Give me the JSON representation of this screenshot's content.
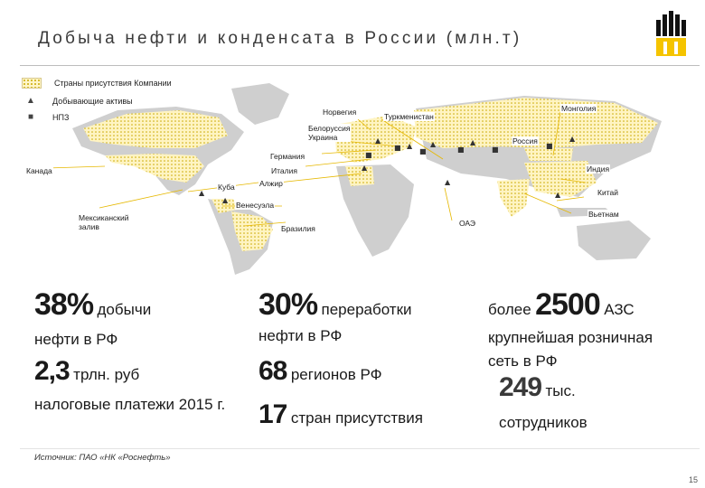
{
  "slide": {
    "title": "Добыча нефти и конденсата в России (млн.т)",
    "source": "Источник: ПАО «НК «Роснефть»",
    "page_number": "15"
  },
  "colors": {
    "accent_yellow": "#f5c400",
    "logo_black": "#111111",
    "land": "#c9c9c9",
    "presence_fill": "#fff5c8"
  },
  "legend": [
    {
      "icon": "dotted-swatch",
      "label": "Страны присутствия Компании"
    },
    {
      "icon": "derrick-icon",
      "label": "Добывающие активы"
    },
    {
      "icon": "refinery-icon",
      "label": "НПЗ"
    }
  ],
  "map_labels": {
    "norway": "Норвегия",
    "turkmenistan": "Туркменистан",
    "mongolia": "Монголия",
    "belarus_ukraine": "Белоруссия\nУкраина",
    "russia": "Россия",
    "germany": "Германия",
    "canada": "Канада",
    "italy": "Италия",
    "cuba": "Куба",
    "algeria": "Алжир",
    "india": "Индия",
    "china": "Китай",
    "venezuela": "Венесуэла",
    "vietnam": "Вьетнам",
    "mexico_gulf": "Мексиканский\nзалив",
    "brazil": "Бразилия",
    "uae": "ОАЭ"
  },
  "stats": {
    "production": {
      "value": "38%",
      "unit": "добычи",
      "caption": "нефти в РФ"
    },
    "refining": {
      "value": "30%",
      "unit": "переработки",
      "caption": "нефти в РФ"
    },
    "stations": {
      "prefix": "более",
      "value": "2500",
      "unit": "АЗС",
      "caption_1": "крупнейшая розничная",
      "caption_2": "сеть в РФ"
    },
    "taxes": {
      "value": "2,3",
      "unit": "трлн. руб",
      "caption": "налоговые платежи 2015 г."
    },
    "regions": {
      "value": "68",
      "unit": "регионов РФ"
    },
    "countries": {
      "value": "17",
      "unit": "стран присутствия"
    },
    "employees": {
      "value": "249",
      "unit": "тыс.",
      "caption": "сотрудников"
    }
  }
}
